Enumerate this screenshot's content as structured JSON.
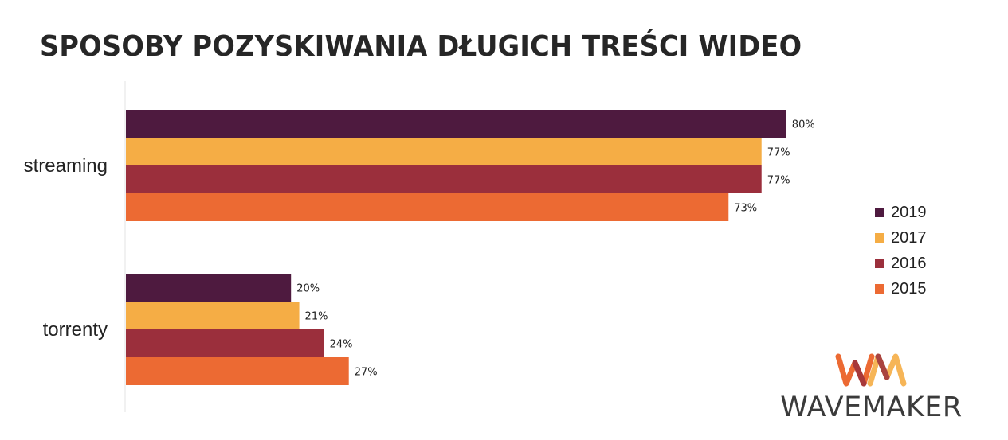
{
  "title": "SPOSOBY POZYSKIWANIA DŁUGICH TREŚCI WIDEO",
  "chart_data": {
    "type": "bar",
    "orientation": "horizontal",
    "categories": [
      "streaming",
      "torrenty"
    ],
    "series": [
      {
        "name": "2019",
        "values": [
          80,
          20
        ],
        "color": "#4e1a3f"
      },
      {
        "name": "2017",
        "values": [
          77,
          21
        ],
        "color": "#f5ad45"
      },
      {
        "name": "2016",
        "values": [
          77,
          24
        ],
        "color": "#9b2f3c"
      },
      {
        "name": "2015",
        "values": [
          73,
          27
        ],
        "color": "#ec6a33"
      }
    ],
    "value_suffix": "%",
    "xlim": [
      0,
      100
    ],
    "grid": false,
    "legend_position": "right"
  },
  "legend": {
    "items": [
      {
        "label": "2019",
        "color": "#4e1a3f"
      },
      {
        "label": "2017",
        "color": "#f5ad45"
      },
      {
        "label": "2016",
        "color": "#9b2f3c"
      },
      {
        "label": "2015",
        "color": "#ec6a33"
      }
    ]
  },
  "logo": {
    "mark": "WM",
    "text": "WAVEMAKER",
    "colors": [
      "#ec6a33",
      "#f5ad45",
      "#9b2f3c"
    ]
  }
}
